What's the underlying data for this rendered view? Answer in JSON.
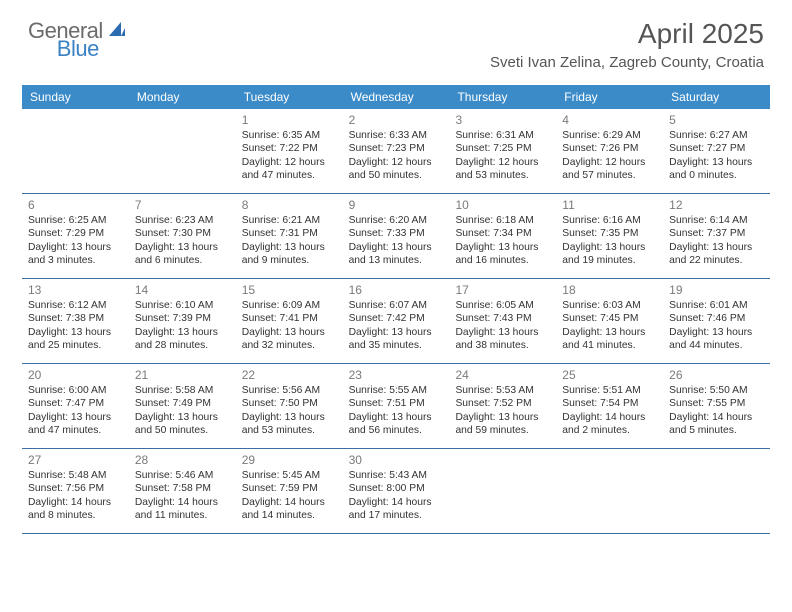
{
  "logo": {
    "text1": "General",
    "text2": "Blue"
  },
  "title": "April 2025",
  "location": "Sveti Ivan Zelina, Zagreb County, Croatia",
  "dayHeaders": [
    "Sunday",
    "Monday",
    "Tuesday",
    "Wednesday",
    "Thursday",
    "Friday",
    "Saturday"
  ],
  "header_bg": "#3b8bc9",
  "border_color": "#3b6fa0",
  "weeks": [
    [
      {
        "day": "",
        "sunrise": "",
        "sunset": "",
        "daylight1": "",
        "daylight2": ""
      },
      {
        "day": "",
        "sunrise": "",
        "sunset": "",
        "daylight1": "",
        "daylight2": ""
      },
      {
        "day": "1",
        "sunrise": "Sunrise: 6:35 AM",
        "sunset": "Sunset: 7:22 PM",
        "daylight1": "Daylight: 12 hours",
        "daylight2": "and 47 minutes."
      },
      {
        "day": "2",
        "sunrise": "Sunrise: 6:33 AM",
        "sunset": "Sunset: 7:23 PM",
        "daylight1": "Daylight: 12 hours",
        "daylight2": "and 50 minutes."
      },
      {
        "day": "3",
        "sunrise": "Sunrise: 6:31 AM",
        "sunset": "Sunset: 7:25 PM",
        "daylight1": "Daylight: 12 hours",
        "daylight2": "and 53 minutes."
      },
      {
        "day": "4",
        "sunrise": "Sunrise: 6:29 AM",
        "sunset": "Sunset: 7:26 PM",
        "daylight1": "Daylight: 12 hours",
        "daylight2": "and 57 minutes."
      },
      {
        "day": "5",
        "sunrise": "Sunrise: 6:27 AM",
        "sunset": "Sunset: 7:27 PM",
        "daylight1": "Daylight: 13 hours",
        "daylight2": "and 0 minutes."
      }
    ],
    [
      {
        "day": "6",
        "sunrise": "Sunrise: 6:25 AM",
        "sunset": "Sunset: 7:29 PM",
        "daylight1": "Daylight: 13 hours",
        "daylight2": "and 3 minutes."
      },
      {
        "day": "7",
        "sunrise": "Sunrise: 6:23 AM",
        "sunset": "Sunset: 7:30 PM",
        "daylight1": "Daylight: 13 hours",
        "daylight2": "and 6 minutes."
      },
      {
        "day": "8",
        "sunrise": "Sunrise: 6:21 AM",
        "sunset": "Sunset: 7:31 PM",
        "daylight1": "Daylight: 13 hours",
        "daylight2": "and 9 minutes."
      },
      {
        "day": "9",
        "sunrise": "Sunrise: 6:20 AM",
        "sunset": "Sunset: 7:33 PM",
        "daylight1": "Daylight: 13 hours",
        "daylight2": "and 13 minutes."
      },
      {
        "day": "10",
        "sunrise": "Sunrise: 6:18 AM",
        "sunset": "Sunset: 7:34 PM",
        "daylight1": "Daylight: 13 hours",
        "daylight2": "and 16 minutes."
      },
      {
        "day": "11",
        "sunrise": "Sunrise: 6:16 AM",
        "sunset": "Sunset: 7:35 PM",
        "daylight1": "Daylight: 13 hours",
        "daylight2": "and 19 minutes."
      },
      {
        "day": "12",
        "sunrise": "Sunrise: 6:14 AM",
        "sunset": "Sunset: 7:37 PM",
        "daylight1": "Daylight: 13 hours",
        "daylight2": "and 22 minutes."
      }
    ],
    [
      {
        "day": "13",
        "sunrise": "Sunrise: 6:12 AM",
        "sunset": "Sunset: 7:38 PM",
        "daylight1": "Daylight: 13 hours",
        "daylight2": "and 25 minutes."
      },
      {
        "day": "14",
        "sunrise": "Sunrise: 6:10 AM",
        "sunset": "Sunset: 7:39 PM",
        "daylight1": "Daylight: 13 hours",
        "daylight2": "and 28 minutes."
      },
      {
        "day": "15",
        "sunrise": "Sunrise: 6:09 AM",
        "sunset": "Sunset: 7:41 PM",
        "daylight1": "Daylight: 13 hours",
        "daylight2": "and 32 minutes."
      },
      {
        "day": "16",
        "sunrise": "Sunrise: 6:07 AM",
        "sunset": "Sunset: 7:42 PM",
        "daylight1": "Daylight: 13 hours",
        "daylight2": "and 35 minutes."
      },
      {
        "day": "17",
        "sunrise": "Sunrise: 6:05 AM",
        "sunset": "Sunset: 7:43 PM",
        "daylight1": "Daylight: 13 hours",
        "daylight2": "and 38 minutes."
      },
      {
        "day": "18",
        "sunrise": "Sunrise: 6:03 AM",
        "sunset": "Sunset: 7:45 PM",
        "daylight1": "Daylight: 13 hours",
        "daylight2": "and 41 minutes."
      },
      {
        "day": "19",
        "sunrise": "Sunrise: 6:01 AM",
        "sunset": "Sunset: 7:46 PM",
        "daylight1": "Daylight: 13 hours",
        "daylight2": "and 44 minutes."
      }
    ],
    [
      {
        "day": "20",
        "sunrise": "Sunrise: 6:00 AM",
        "sunset": "Sunset: 7:47 PM",
        "daylight1": "Daylight: 13 hours",
        "daylight2": "and 47 minutes."
      },
      {
        "day": "21",
        "sunrise": "Sunrise: 5:58 AM",
        "sunset": "Sunset: 7:49 PM",
        "daylight1": "Daylight: 13 hours",
        "daylight2": "and 50 minutes."
      },
      {
        "day": "22",
        "sunrise": "Sunrise: 5:56 AM",
        "sunset": "Sunset: 7:50 PM",
        "daylight1": "Daylight: 13 hours",
        "daylight2": "and 53 minutes."
      },
      {
        "day": "23",
        "sunrise": "Sunrise: 5:55 AM",
        "sunset": "Sunset: 7:51 PM",
        "daylight1": "Daylight: 13 hours",
        "daylight2": "and 56 minutes."
      },
      {
        "day": "24",
        "sunrise": "Sunrise: 5:53 AM",
        "sunset": "Sunset: 7:52 PM",
        "daylight1": "Daylight: 13 hours",
        "daylight2": "and 59 minutes."
      },
      {
        "day": "25",
        "sunrise": "Sunrise: 5:51 AM",
        "sunset": "Sunset: 7:54 PM",
        "daylight1": "Daylight: 14 hours",
        "daylight2": "and 2 minutes."
      },
      {
        "day": "26",
        "sunrise": "Sunrise: 5:50 AM",
        "sunset": "Sunset: 7:55 PM",
        "daylight1": "Daylight: 14 hours",
        "daylight2": "and 5 minutes."
      }
    ],
    [
      {
        "day": "27",
        "sunrise": "Sunrise: 5:48 AM",
        "sunset": "Sunset: 7:56 PM",
        "daylight1": "Daylight: 14 hours",
        "daylight2": "and 8 minutes."
      },
      {
        "day": "28",
        "sunrise": "Sunrise: 5:46 AM",
        "sunset": "Sunset: 7:58 PM",
        "daylight1": "Daylight: 14 hours",
        "daylight2": "and 11 minutes."
      },
      {
        "day": "29",
        "sunrise": "Sunrise: 5:45 AM",
        "sunset": "Sunset: 7:59 PM",
        "daylight1": "Daylight: 14 hours",
        "daylight2": "and 14 minutes."
      },
      {
        "day": "30",
        "sunrise": "Sunrise: 5:43 AM",
        "sunset": "Sunset: 8:00 PM",
        "daylight1": "Daylight: 14 hours",
        "daylight2": "and 17 minutes."
      },
      {
        "day": "",
        "sunrise": "",
        "sunset": "",
        "daylight1": "",
        "daylight2": ""
      },
      {
        "day": "",
        "sunrise": "",
        "sunset": "",
        "daylight1": "",
        "daylight2": ""
      },
      {
        "day": "",
        "sunrise": "",
        "sunset": "",
        "daylight1": "",
        "daylight2": ""
      }
    ]
  ]
}
